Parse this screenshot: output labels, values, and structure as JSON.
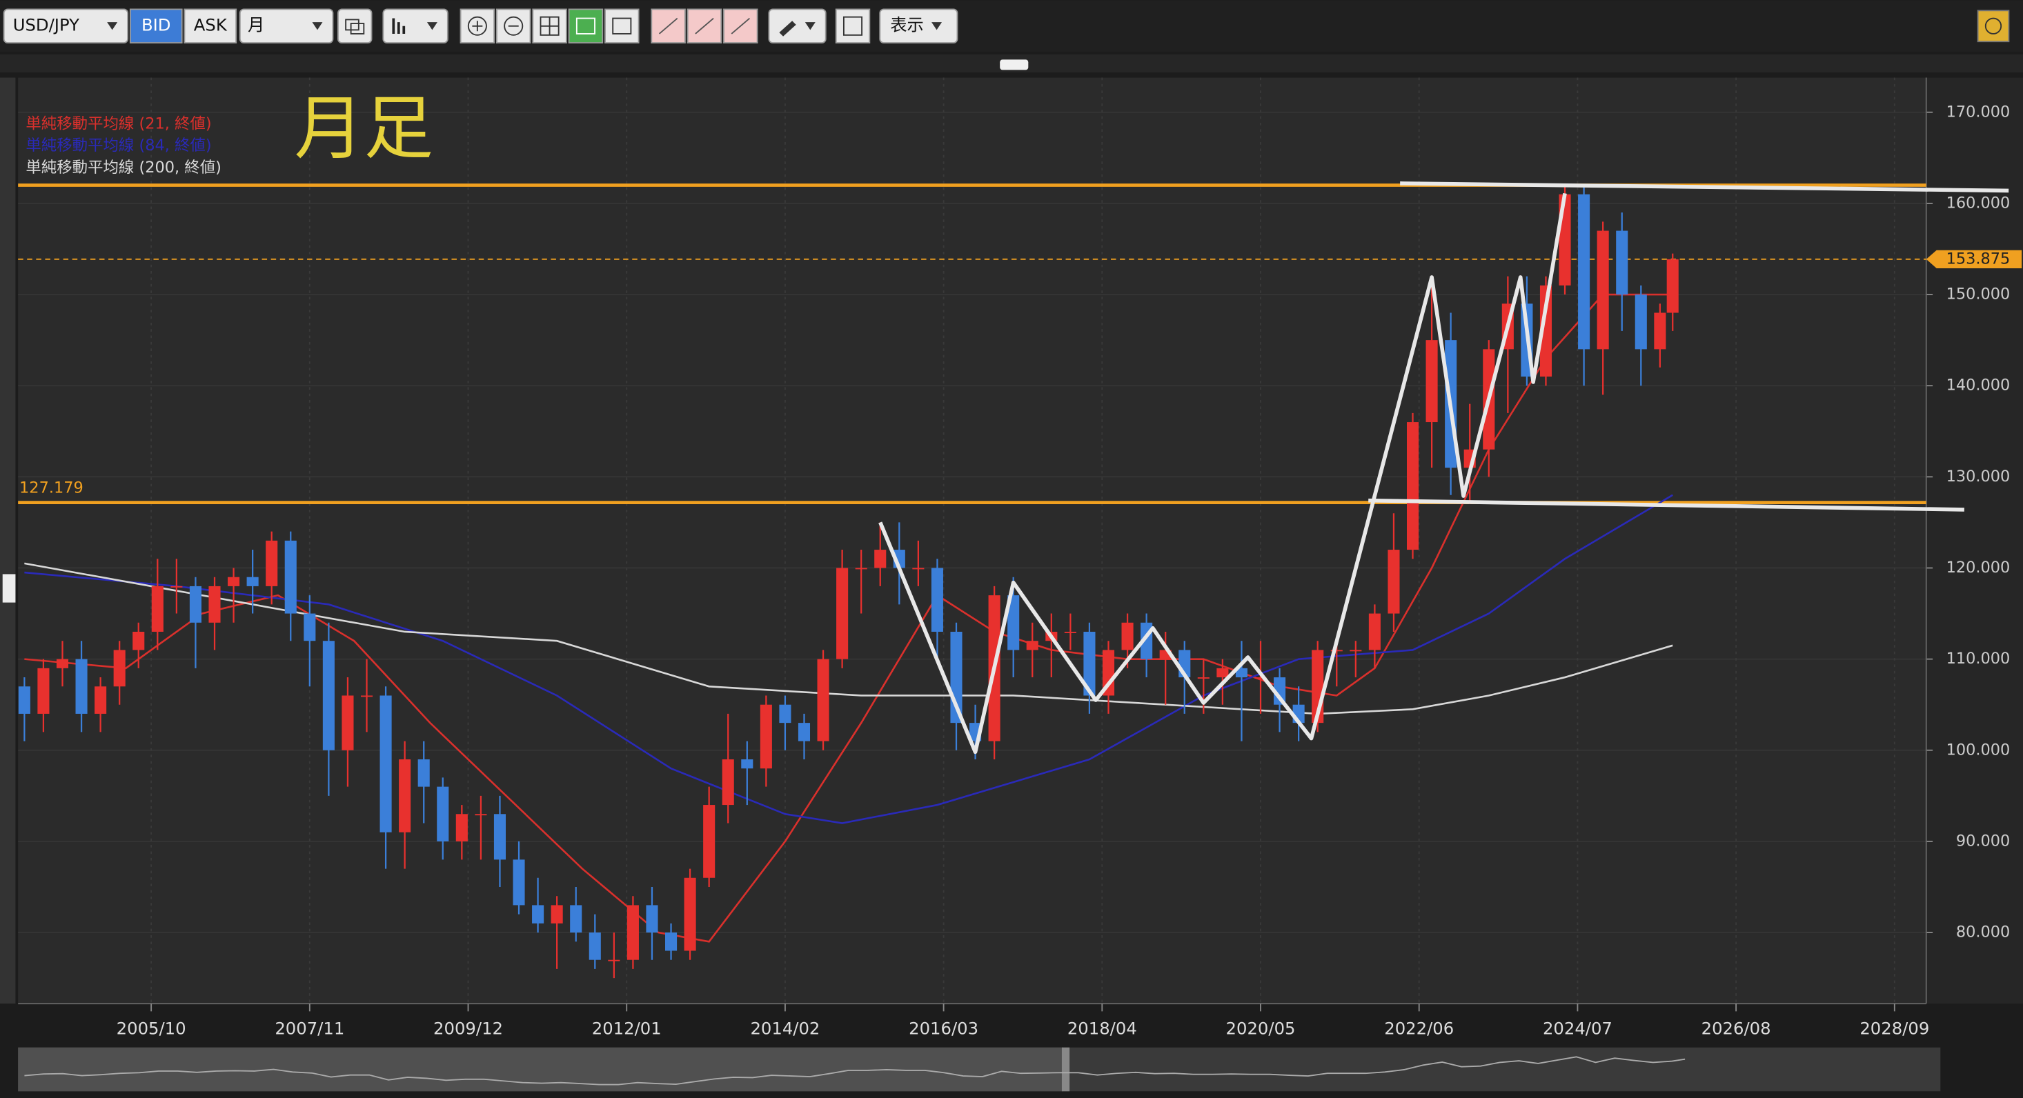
{
  "toolbar": {
    "symbol": "USD/JPY",
    "bid": "BID",
    "ask": "ASK",
    "period": "月",
    "view": "表示"
  },
  "chart_data": {
    "type": "candlestick",
    "title": "月足",
    "x": [
      "2004/02",
      "2004/05",
      "2004/08",
      "2004/11",
      "2005/02",
      "2005/05",
      "2005/08",
      "2005/11",
      "2006/02",
      "2006/05",
      "2006/08",
      "2006/11",
      "2007/02",
      "2007/05",
      "2007/08",
      "2007/11",
      "2008/02",
      "2008/05",
      "2008/08",
      "2008/11",
      "2009/02",
      "2009/05",
      "2009/08",
      "2009/11",
      "2010/02",
      "2010/05",
      "2010/08",
      "2010/11",
      "2011/02",
      "2011/05",
      "2011/08",
      "2011/11",
      "2012/02",
      "2012/05",
      "2012/08",
      "2012/11",
      "2013/02",
      "2013/05",
      "2013/08",
      "2013/11",
      "2014/02",
      "2014/05",
      "2014/08",
      "2014/11",
      "2015/02",
      "2015/05",
      "2015/08",
      "2015/11",
      "2016/02",
      "2016/05",
      "2016/08",
      "2016/11",
      "2017/02",
      "2017/05",
      "2017/08",
      "2017/11",
      "2018/02",
      "2018/05",
      "2018/08",
      "2018/11",
      "2019/02",
      "2019/05",
      "2019/08",
      "2019/11",
      "2020/02",
      "2020/05",
      "2020/08",
      "2020/11",
      "2021/02",
      "2021/05",
      "2021/08",
      "2021/11",
      "2022/02",
      "2022/05",
      "2022/08",
      "2022/11",
      "2023/02",
      "2023/05",
      "2023/08",
      "2023/11",
      "2024/02",
      "2024/05",
      "2024/08",
      "2024/11",
      "2025/02",
      "2025/05",
      "2025/08",
      "2025/10"
    ],
    "open": [
      107,
      104,
      109,
      110,
      104,
      107,
      111,
      113,
      118,
      118,
      114,
      118,
      119,
      118,
      123,
      115,
      112,
      100,
      106,
      106,
      91,
      99,
      96,
      90,
      93,
      93,
      88,
      83,
      81,
      83,
      80,
      77,
      77,
      83,
      80,
      78,
      86,
      94,
      99,
      98,
      105,
      103,
      101,
      110,
      120,
      120,
      122,
      120,
      120,
      113,
      103,
      101,
      117,
      111,
      112,
      113,
      113,
      106,
      111,
      114,
      110,
      111,
      108,
      108,
      109,
      108,
      108,
      105,
      103,
      111,
      111,
      111,
      115,
      122,
      136,
      145,
      131,
      133,
      144,
      149,
      141,
      151,
      161,
      144,
      157,
      150,
      144,
      148
    ],
    "high": [
      108,
      110,
      112,
      112,
      108,
      112,
      114,
      121,
      121,
      119,
      119,
      120,
      122,
      124,
      124,
      117,
      114,
      108,
      110,
      107,
      101,
      101,
      97,
      94,
      95,
      95,
      90,
      86,
      84,
      85,
      82,
      80,
      84,
      85,
      81,
      87,
      96,
      104,
      101,
      106,
      106,
      104,
      111,
      122,
      122,
      125,
      125,
      123,
      121,
      114,
      105,
      118,
      119,
      114,
      115,
      115,
      114,
      112,
      115,
      115,
      113,
      112,
      110,
      110,
      112,
      112,
      109,
      107,
      112,
      112,
      112,
      116,
      126,
      137,
      152,
      148,
      138,
      145,
      152,
      152,
      152,
      162,
      162,
      158,
      159,
      151,
      149,
      154.5
    ],
    "low": [
      101,
      102,
      107,
      102,
      102,
      105,
      109,
      111,
      115,
      109,
      111,
      114,
      115,
      116,
      112,
      107,
      95,
      96,
      102,
      87,
      87,
      92,
      88,
      88,
      88,
      85,
      82,
      80,
      76,
      79,
      76,
      75,
      76,
      77,
      77,
      77,
      85,
      92,
      94,
      96,
      100,
      99,
      100,
      109,
      115,
      118,
      116,
      118,
      110,
      100,
      99,
      99,
      108,
      108,
      108,
      111,
      104,
      104,
      109,
      108,
      105,
      104,
      104,
      105,
      101,
      104,
      102,
      101,
      102,
      107,
      108,
      109,
      113,
      121,
      131,
      128,
      127,
      130,
      137,
      140,
      140,
      150,
      140,
      139,
      146,
      140,
      142,
      146
    ],
    "close": [
      104,
      109,
      110,
      104,
      107,
      111,
      113,
      118,
      118,
      114,
      118,
      119,
      118,
      123,
      115,
      112,
      100,
      106,
      106,
      91,
      99,
      96,
      90,
      93,
      93,
      88,
      83,
      81,
      83,
      80,
      77,
      77,
      83,
      80,
      78,
      86,
      94,
      99,
      98,
      105,
      103,
      101,
      110,
      120,
      120,
      122,
      120,
      120,
      113,
      103,
      101,
      117,
      111,
      112,
      113,
      113,
      106,
      111,
      114,
      110,
      111,
      108,
      108,
      109,
      108,
      108,
      105,
      103,
      111,
      111,
      111,
      115,
      122,
      136,
      145,
      131,
      133,
      144,
      149,
      141,
      151,
      161,
      144,
      157,
      150,
      144,
      148,
      153.875
    ],
    "up_color": "#e8312e",
    "down_color": "#3b7fd9",
    "series": [
      {
        "name": "単純移動平均線 (21, 終値)",
        "color": "#d9302c",
        "x": [
          "2004/02",
          "2005/06",
          "2006/06",
          "2007/06",
          "2008/06",
          "2009/06",
          "2010/06",
          "2011/06",
          "2012/06",
          "2013/02",
          "2014/02",
          "2015/02",
          "2016/02",
          "2016/11",
          "2017/08",
          "2018/08",
          "2019/08",
          "2020/08",
          "2021/05",
          "2021/11",
          "2022/08",
          "2023/05",
          "2024/02",
          "2024/11",
          "2025/10"
        ],
        "values": [
          110,
          109,
          115,
          117,
          112,
          103,
          95,
          87,
          80,
          79,
          90,
          103,
          117,
          113,
          111,
          110,
          110,
          107,
          106,
          109,
          120,
          133,
          143,
          150,
          150
        ]
      },
      {
        "name": "単純移動平均線 (84, 終値)",
        "color": "#2a2ab8",
        "x": [
          "2004/02",
          "2006/02",
          "2008/02",
          "2009/08",
          "2011/02",
          "2012/08",
          "2014/02",
          "2014/11",
          "2016/02",
          "2018/02",
          "2019/08",
          "2020/11",
          "2022/05",
          "2023/05",
          "2024/05",
          "2025/10"
        ],
        "values": [
          119.5,
          118,
          116,
          112,
          106,
          98,
          93,
          92,
          94,
          99,
          106,
          110,
          111,
          115,
          121,
          128
        ]
      },
      {
        "name": "単純移動平均線 (200, 終値)",
        "color": "#d8d8d8",
        "x": [
          "2004/02",
          "2007/02",
          "2009/02",
          "2011/02",
          "2013/02",
          "2015/02",
          "2017/02",
          "2019/02",
          "2021/02",
          "2022/05",
          "2023/05",
          "2024/05",
          "2025/10"
        ],
        "values": [
          120.5,
          116,
          113,
          112,
          107,
          106,
          106,
          105,
          104,
          104.5,
          106,
          108,
          111.5
        ]
      }
    ],
    "levels": [
      {
        "value": 162
      },
      {
        "value": 127.179,
        "show_label": true
      }
    ],
    "current_price": 153.875,
    "drawings": [
      {
        "x": [
          "2015/05",
          "2016/08",
          "2017/02",
          "2018/03",
          "2018/12",
          "2019/08",
          "2020/03",
          "2021/01",
          "2022/08",
          "2023/01",
          "2023/10",
          "2023/12",
          "2024/05"
        ],
        "values": [
          125,
          99.8,
          118.4,
          105.5,
          113.4,
          105.2,
          110.2,
          101.3,
          151.9,
          127.9,
          151.9,
          140.4,
          161.1
        ]
      },
      {
        "x": [
          "2022/03",
          "2030/03"
        ],
        "values": [
          162.2,
          161.4
        ]
      },
      {
        "x": [
          "2021/10",
          "2029/08"
        ],
        "values": [
          127.4,
          126.4
        ]
      }
    ],
    "xlim": [
      "2004/01",
      "2029/02"
    ],
    "xticks": [
      "2005/10",
      "2007/11",
      "2009/12",
      "2012/01",
      "2014/02",
      "2016/03",
      "2018/04",
      "2020/05",
      "2022/06",
      "2024/07",
      "2026/08",
      "2028/09"
    ],
    "ylim": [
      72.2,
      173.8
    ],
    "yticks": [
      {
        "value": 80,
        "label": "80.000"
      },
      {
        "value": 90,
        "label": "90.000"
      },
      {
        "value": 100,
        "label": "100.000"
      },
      {
        "value": 110,
        "label": "110.000"
      },
      {
        "value": 120,
        "label": "120.000"
      },
      {
        "value": 130,
        "label": "130.000"
      },
      {
        "value": 140,
        "label": "140.000"
      },
      {
        "value": 150,
        "label": "150.000"
      },
      {
        "value": 160,
        "label": "160.000"
      },
      {
        "value": 170,
        "label": "170.000"
      }
    ],
    "grid": true
  }
}
